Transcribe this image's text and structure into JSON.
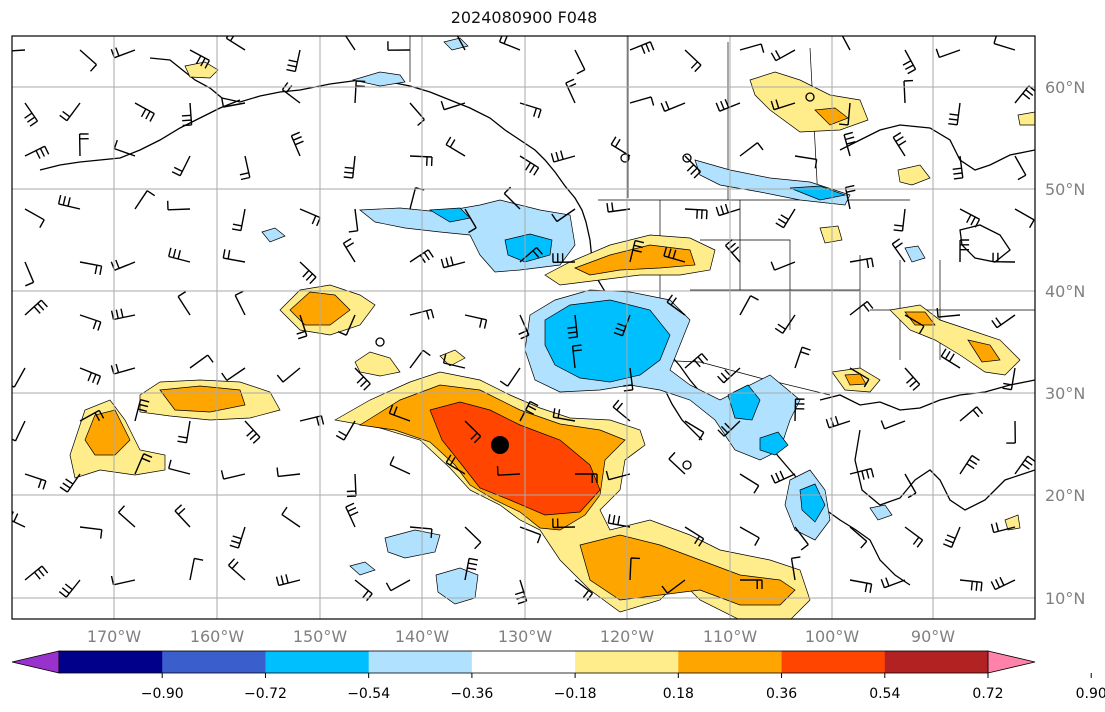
{
  "title": "2024080900 F048",
  "lon_labels": [
    "170°W",
    "160°W",
    "150°W",
    "140°W",
    "130°W",
    "120°W",
    "110°W",
    "100°W",
    "90°W"
  ],
  "lat_labels": [
    "60°N",
    "50°N",
    "40°N",
    "30°N",
    "20°N",
    "10°N"
  ],
  "colorbar": {
    "colors": [
      "#9932cc",
      "#00008b",
      "#3a5fcd",
      "#00bfff",
      "#b0e2ff",
      "#ffffff",
      "#ffec8b",
      "#ffa500",
      "#ff4500",
      "#b22222",
      "#ff82ab"
    ],
    "tick_labels": [
      "−0.90",
      "−0.72",
      "−0.54",
      "−0.36",
      "−0.18",
      "0.18",
      "0.36",
      "0.54",
      "0.72",
      "0.90"
    ]
  },
  "colors": {
    "land_outline": "#000000",
    "grid": "#aaaaaa",
    "label": "#808080"
  }
}
